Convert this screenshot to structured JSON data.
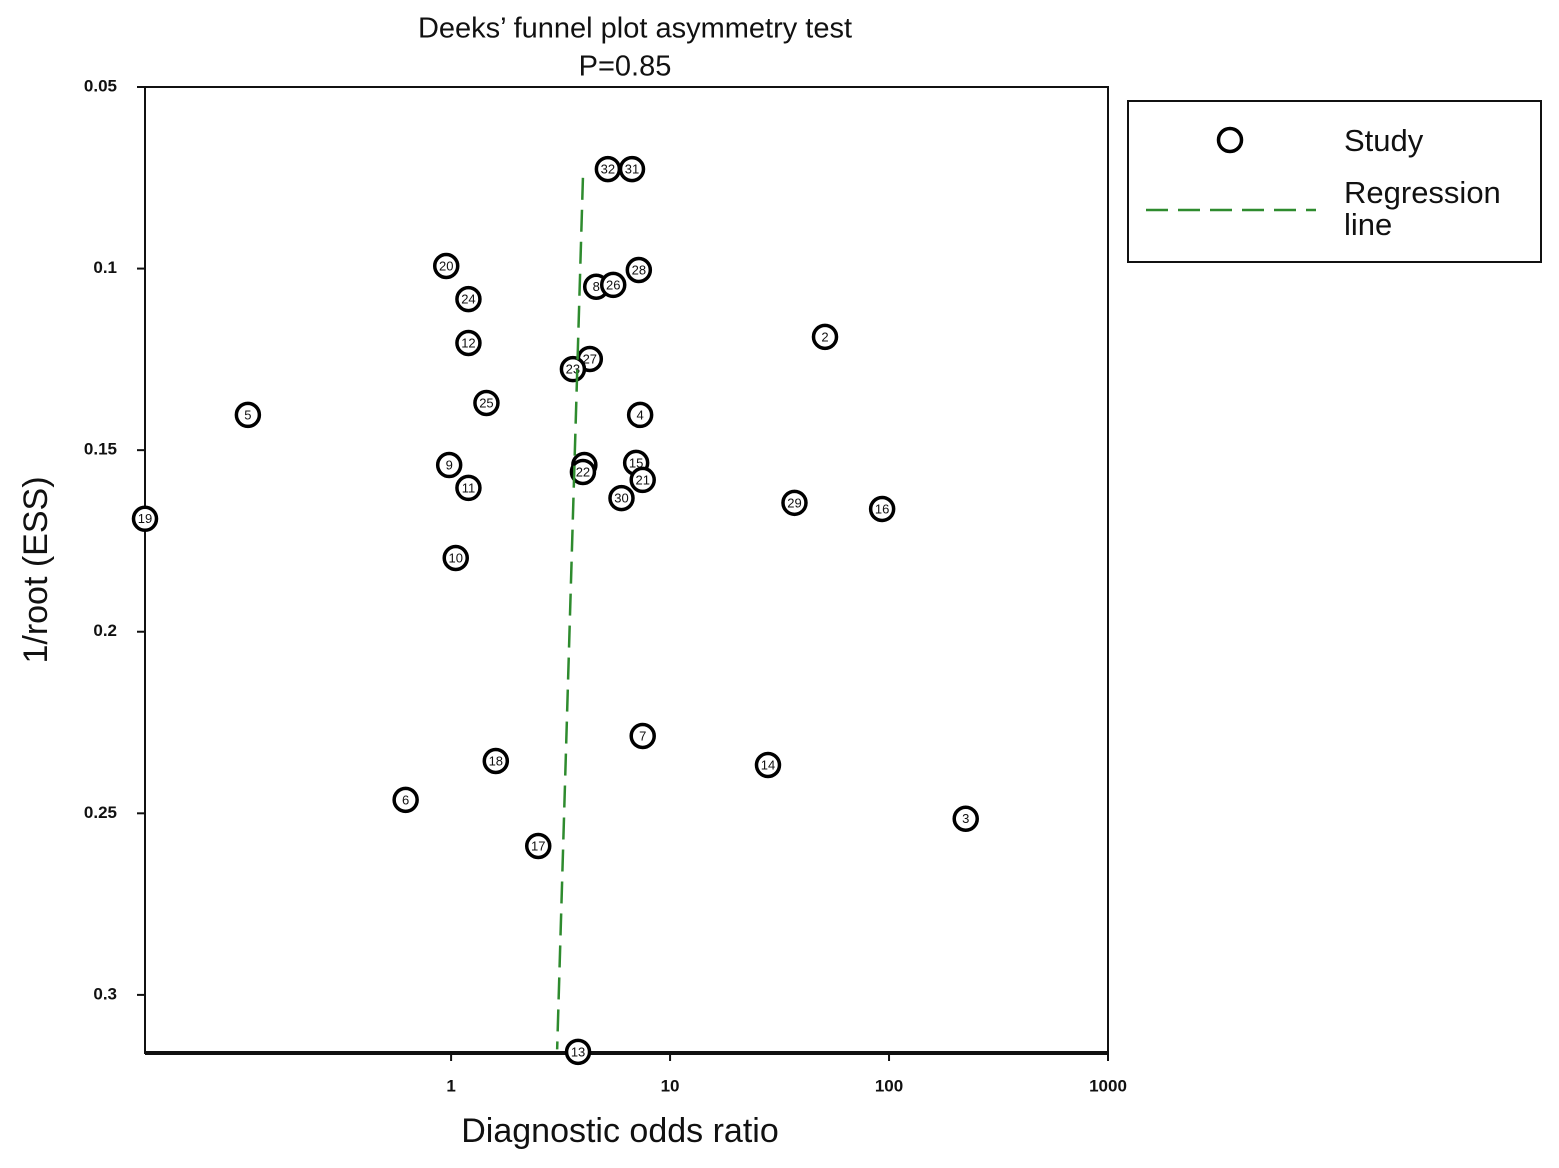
{
  "chart_data": {
    "type": "scatter",
    "title": "Deeks’ funnel plot asymmetry test",
    "subtitle": "P=0.85",
    "xlabel": "Diagnostic odds ratio",
    "ylabel": "1/root (ESS)",
    "xscale": "log",
    "y_inverted": true,
    "xlim": [
      0.04,
      1000
    ],
    "xticks": [
      1,
      10,
      100,
      1000
    ],
    "ylim": [
      0.05,
      0.316
    ],
    "yticks": [
      0.05,
      0.1,
      0.15,
      0.2,
      0.25,
      0.3
    ],
    "legend": "outside right",
    "series": [
      {
        "name": "Study",
        "type": "scatter",
        "color": "#000000",
        "point_labels": [
          "32",
          "31",
          "20",
          "24",
          "8",
          "26",
          "28",
          "2",
          "12",
          "27",
          "23",
          "25",
          "5",
          "4",
          "9",
          "11",
          "1",
          "22",
          "15",
          "21",
          "30",
          "29",
          "16",
          "19",
          "10",
          "7",
          "18",
          "14",
          "6",
          "3",
          "17",
          "13"
        ],
        "x": [
          5.2,
          6.7,
          0.95,
          1.2,
          4.6,
          5.5,
          7.2,
          51,
          1.2,
          4.3,
          3.6,
          1.45,
          0.118,
          7.3,
          0.98,
          1.2,
          4.06,
          4.0,
          7.0,
          7.5,
          6.0,
          37,
          93,
          0.04,
          1.05,
          7.5,
          1.6,
          28,
          0.62,
          224,
          2.5,
          3.8
        ],
        "values": [
          0.0726,
          0.0726,
          0.0993,
          0.1084,
          0.105,
          0.1045,
          0.1004,
          0.1188,
          0.1205,
          0.1249,
          0.1277,
          0.137,
          0.1403,
          0.1403,
          0.1541,
          0.1604,
          0.1541,
          0.156,
          0.1535,
          0.1582,
          0.1632,
          0.1645,
          0.1662,
          0.1689,
          0.1797,
          0.2287,
          0.2356,
          0.2367,
          0.2463,
          0.2515,
          0.259,
          0.3157
        ]
      },
      {
        "name": "Regression line",
        "type": "line",
        "color": "#2e8b2e",
        "dashed": true,
        "x": [
          4.0,
          3.05
        ],
        "values": [
          0.075,
          0.315
        ]
      }
    ]
  }
}
